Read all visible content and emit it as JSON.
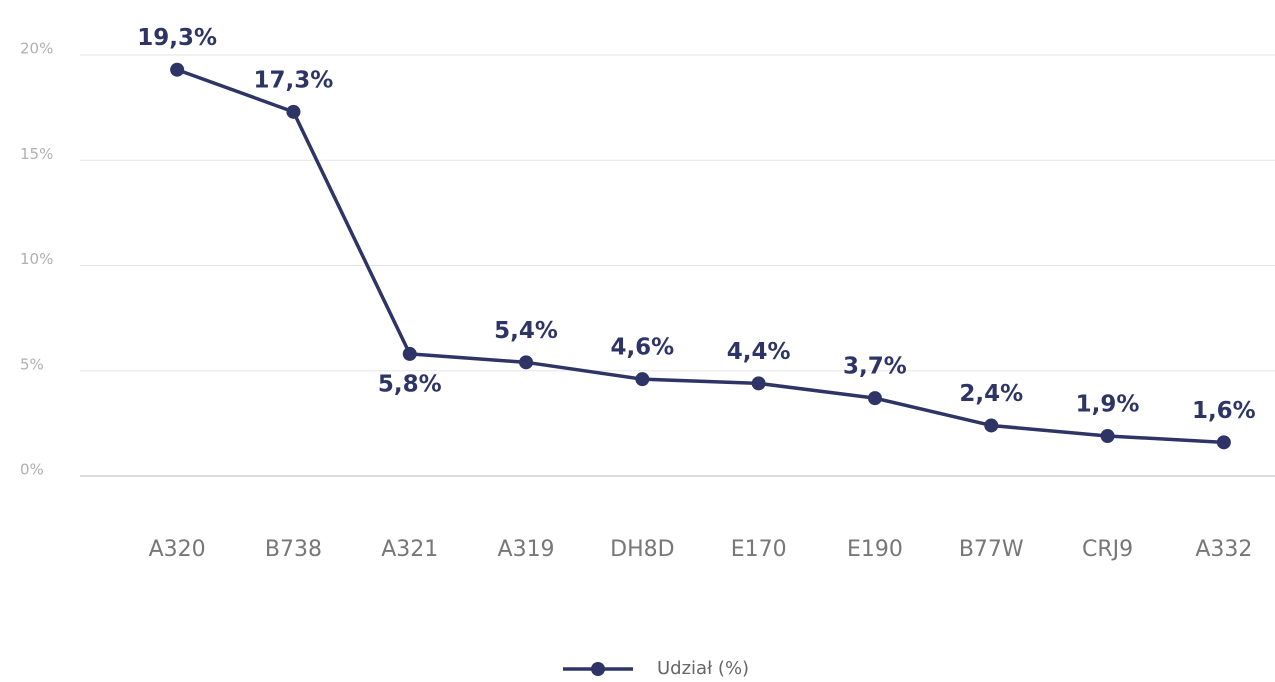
{
  "chart_data": {
    "type": "line",
    "categories": [
      "A320",
      "B738",
      "A321",
      "A319",
      "DH8D",
      "E170",
      "E190",
      "B77W",
      "CRJ9",
      "A332"
    ],
    "series": [
      {
        "name": "Udział (%)",
        "color": "#2e3566",
        "values": [
          19.3,
          17.3,
          5.8,
          5.4,
          4.6,
          4.4,
          3.7,
          2.4,
          1.9,
          1.6
        ],
        "value_labels": [
          "19,3%",
          "17,3%",
          "5,8%",
          "5,4%",
          "4,6%",
          "4,4%",
          "3,7%",
          "2,4%",
          "1,9%",
          "1,6%"
        ]
      }
    ],
    "ylim": [
      0,
      20
    ],
    "yticks": [
      {
        "value": 0,
        "label": "0%"
      },
      {
        "value": 5,
        "label": "5%"
      },
      {
        "value": 10,
        "label": "10%"
      },
      {
        "value": 15,
        "label": "15%"
      },
      {
        "value": 20,
        "label": "20%"
      }
    ],
    "grid": true,
    "legend": "bottom"
  }
}
